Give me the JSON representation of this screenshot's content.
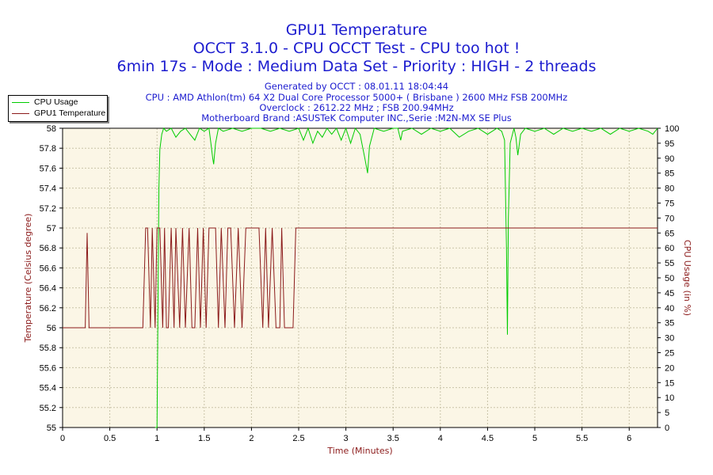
{
  "title": "GPU1 Temperature",
  "subtitle1": "OCCT 3.1.0 - CPU OCCT Test - CPU too hot !",
  "subtitle2": "6min 17s - Mode : Medium Data Set - Priority : HIGH - 2 threads",
  "info": [
    "Generated by OCCT : 08.01.11 18:04:44",
    "CPU : AMD Athlon(tm) 64 X2 Dual Core Processor 5000+ ( Brisbane ) 2600 MHz FSB 200MHz",
    "Overclock : 2612.22 MHz ; FSB 200.94MHz",
    "Motherboard Brand :ASUSTeK Computer INC.,Serie :M2N-MX SE Plus"
  ],
  "colors": {
    "title": "#1c1ccf",
    "axis_label": "#8b1a1a",
    "plot_bg": "#fbf6e6",
    "grid": "#c9c3a8",
    "cpu_usage": "#00cc00",
    "gpu_temp": "#8b1a1a"
  },
  "chart_data": {
    "type": "line",
    "xlabel": "Time (Minutes)",
    "ylabel_left": "Temperature (Celsius degree)",
    "ylabel_right": "CPU Usage (in %)",
    "xlim": [
      0,
      6.3
    ],
    "ylim_left": [
      55,
      58
    ],
    "ylim_right": [
      0,
      100
    ],
    "x_ticks": [
      "0",
      "0.5",
      "1",
      "1.5",
      "2",
      "2.5",
      "3",
      "3.5",
      "4",
      "4.5",
      "5",
      "5.5",
      "6"
    ],
    "y_left_ticks": [
      "55",
      "55.2",
      "55.4",
      "55.6",
      "55.8",
      "56",
      "56.2",
      "56.4",
      "56.6",
      "56.8",
      "57",
      "57.2",
      "57.4",
      "57.6",
      "57.8",
      "58"
    ],
    "y_right_ticks": [
      "0",
      "5",
      "10",
      "15",
      "20",
      "25",
      "30",
      "35",
      "40",
      "45",
      "50",
      "55",
      "60",
      "65",
      "70",
      "75",
      "80",
      "85",
      "90",
      "95",
      "100"
    ],
    "grid": true,
    "legend_position": "top-left",
    "series": [
      {
        "name": "CPU Usage",
        "axis": "right",
        "x": [
          0.98,
          1.0,
          1.01,
          1.02,
          1.03,
          1.05,
          1.07,
          1.1,
          1.15,
          1.2,
          1.25,
          1.3,
          1.35,
          1.4,
          1.45,
          1.5,
          1.55,
          1.57,
          1.59,
          1.6,
          1.62,
          1.65,
          1.7,
          1.8,
          1.9,
          2.0,
          2.1,
          2.2,
          2.3,
          2.4,
          2.5,
          2.55,
          2.6,
          2.65,
          2.7,
          2.75,
          2.8,
          2.85,
          2.9,
          2.95,
          3.0,
          3.05,
          3.1,
          3.15,
          3.2,
          3.23,
          3.25,
          3.3,
          3.4,
          3.5,
          3.55,
          3.58,
          3.6,
          3.7,
          3.8,
          3.9,
          4.0,
          4.1,
          4.2,
          4.3,
          4.4,
          4.5,
          4.6,
          4.65,
          4.68,
          4.7,
          4.71,
          4.72,
          4.74,
          4.78,
          4.8,
          4.82,
          4.85,
          4.9,
          5.0,
          5.1,
          5.2,
          5.3,
          5.4,
          5.5,
          5.6,
          5.7,
          5.8,
          5.9,
          6.0,
          6.1,
          6.2,
          6.25,
          6.3
        ],
        "values": [
          0,
          0,
          40,
          80,
          93,
          98,
          100,
          99,
          100,
          97,
          99,
          100,
          98,
          96,
          100,
          99,
          100,
          95,
          90,
          88,
          95,
          100,
          99,
          100,
          99,
          100,
          100,
          99,
          100,
          99,
          100,
          96,
          100,
          95,
          99,
          97,
          100,
          98,
          100,
          96,
          100,
          95,
          100,
          98,
          90,
          85,
          94,
          100,
          99,
          100,
          100,
          96,
          99,
          100,
          98,
          100,
          99,
          100,
          97,
          99,
          100,
          98,
          100,
          99,
          96,
          60,
          31,
          70,
          95,
          100,
          97,
          91,
          98,
          100,
          99,
          100,
          98,
          100,
          99,
          100,
          99,
          100,
          98,
          100,
          99,
          100,
          99,
          98,
          100
        ]
      },
      {
        "name": "GPU1 Temperature",
        "axis": "left",
        "x": [
          0,
          0.24,
          0.26,
          0.28,
          0.3,
          0.85,
          0.88,
          0.9,
          0.93,
          0.95,
          0.98,
          1.0,
          1.03,
          1.06,
          1.08,
          1.1,
          1.12,
          1.15,
          1.18,
          1.2,
          1.24,
          1.27,
          1.3,
          1.34,
          1.37,
          1.4,
          1.43,
          1.46,
          1.49,
          1.52,
          1.55,
          1.62,
          1.65,
          1.68,
          1.72,
          1.75,
          1.78,
          1.82,
          1.86,
          1.9,
          1.94,
          1.96,
          1.98,
          2.08,
          2.12,
          2.15,
          2.18,
          2.22,
          2.26,
          2.3,
          2.32,
          2.35,
          2.4,
          2.44,
          2.47,
          6.3
        ],
        "values": [
          56,
          56,
          56.95,
          56,
          56,
          56,
          57,
          57,
          56,
          57,
          56,
          57,
          57,
          56,
          57,
          56,
          56,
          57,
          56,
          57,
          56,
          57,
          56,
          57,
          56,
          56,
          57,
          56,
          57,
          56,
          57,
          57,
          56,
          57,
          56,
          57,
          57,
          56,
          57,
          56,
          57,
          57,
          57,
          57,
          56,
          57,
          56,
          57,
          56,
          56,
          57,
          56,
          56,
          56,
          57,
          57
        ]
      }
    ]
  }
}
